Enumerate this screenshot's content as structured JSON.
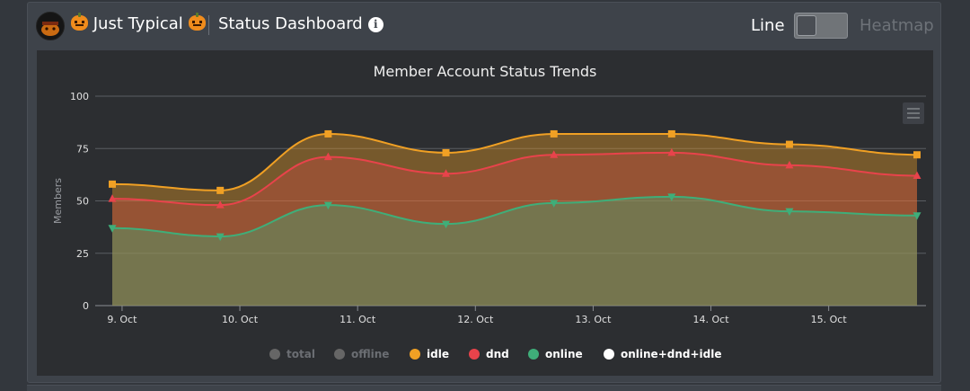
{
  "header": {
    "server_name": "Just Typical",
    "dashboard_title": "Status Dashboard",
    "mode_line": "Line",
    "mode_heatmap": "Heatmap"
  },
  "chart_data": {
    "type": "area",
    "title": "Member Account Status Trends",
    "xlabel": "",
    "ylabel": "Members",
    "ylim": [
      0,
      100
    ],
    "yticks": [
      0,
      25,
      50,
      75,
      100
    ],
    "x_ticks": [
      "9. Oct",
      "10. Oct",
      "11. Oct",
      "12. Oct",
      "13. Oct",
      "14. Oct",
      "15. Oct"
    ],
    "x": [
      "2023-10-08 22:00",
      "2023-10-09 20:00",
      "2023-10-10 18:00",
      "2023-10-11 18:00",
      "2023-10-12 16:00",
      "2023-10-13 16:00",
      "2023-10-14 16:00",
      "2023-10-15 18:00"
    ],
    "series": [
      {
        "name": "idle",
        "color": "#f0a024",
        "marker": "square",
        "values": [
          58,
          55,
          82,
          73,
          82,
          82,
          77,
          72
        ]
      },
      {
        "name": "dnd",
        "color": "#e8434b",
        "marker": "triangle",
        "values": [
          51,
          48,
          71,
          63,
          72,
          73,
          67,
          62
        ]
      },
      {
        "name": "online",
        "color": "#3fae79",
        "marker": "triangle-down",
        "values": [
          37,
          33,
          48,
          39,
          49,
          52,
          45,
          43
        ]
      }
    ],
    "legend": [
      {
        "name": "total",
        "color": "#666666",
        "active": false
      },
      {
        "name": "offline",
        "color": "#666666",
        "active": false
      },
      {
        "name": "idle",
        "color": "#f0a024",
        "active": true
      },
      {
        "name": "dnd",
        "color": "#e8434b",
        "active": true
      },
      {
        "name": "online",
        "color": "#3fae79",
        "active": true
      },
      {
        "name": "online+dnd+idle",
        "color": "#ffffff",
        "active": true
      }
    ],
    "legend_position": "bottom-center",
    "grid": true
  }
}
